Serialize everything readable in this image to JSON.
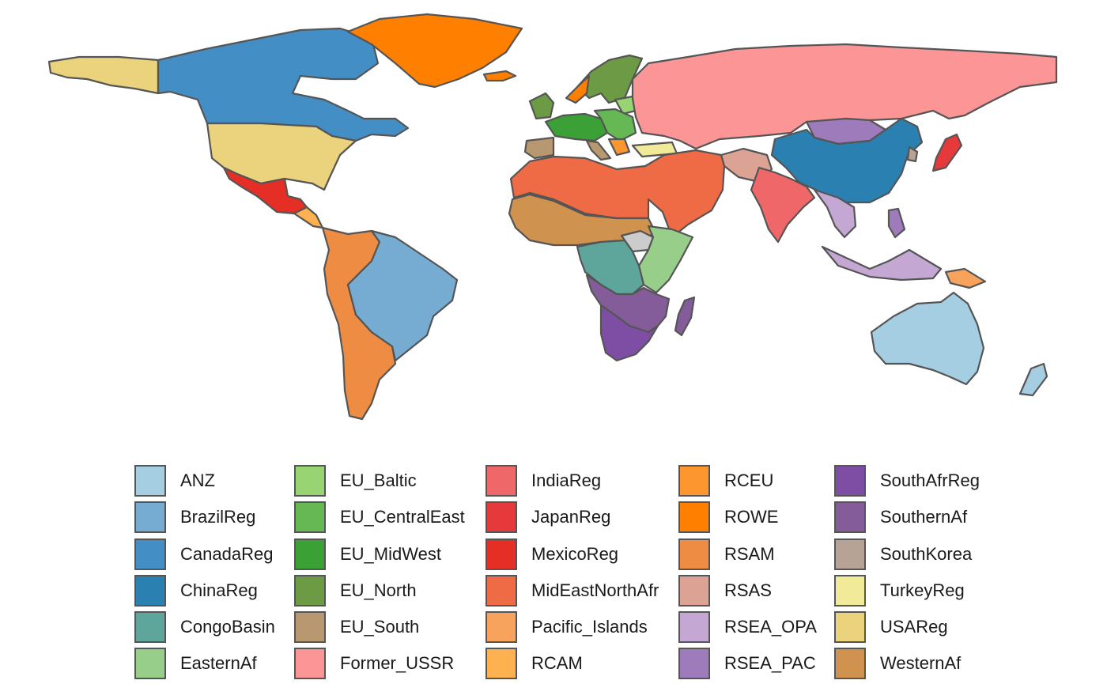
{
  "legend": {
    "items": [
      {
        "label": "ANZ",
        "color": "#a6cee3"
      },
      {
        "label": "BrazilReg",
        "color": "#76acd2"
      },
      {
        "label": "CanadaReg",
        "color": "#438ec4"
      },
      {
        "label": "ChinaReg",
        "color": "#2a80b0"
      },
      {
        "label": "CongoBasin",
        "color": "#5ea69c"
      },
      {
        "label": "EasternAf",
        "color": "#97cf8a"
      },
      {
        "label": "EU_Baltic",
        "color": "#98d472"
      },
      {
        "label": "EU_CentralEast",
        "color": "#65b853"
      },
      {
        "label": "EU_MidWest",
        "color": "#3ba035"
      },
      {
        "label": "EU_North",
        "color": "#6d9a45"
      },
      {
        "label": "EU_South",
        "color": "#b89870"
      },
      {
        "label": "Former_USSR",
        "color": "#fb9596"
      },
      {
        "label": "IndiaReg",
        "color": "#f0676a"
      },
      {
        "label": "JapanReg",
        "color": "#e6393b"
      },
      {
        "label": "MexicoReg",
        "color": "#e42e26"
      },
      {
        "label": "MidEastNorthAfr",
        "color": "#ef6b45"
      },
      {
        "label": "Pacific_Islands",
        "color": "#f8a35d"
      },
      {
        "label": "RCAM",
        "color": "#fdb150"
      },
      {
        "label": "RCEU",
        "color": "#fe962f"
      },
      {
        "label": "ROWE",
        "color": "#ff8000"
      },
      {
        "label": "RSAM",
        "color": "#ee8c43"
      },
      {
        "label": "RSAS",
        "color": "#dca293"
      },
      {
        "label": "RSEA_OPA",
        "color": "#c4a8d3"
      },
      {
        "label": "RSEA_PAC",
        "color": "#9e7cbc"
      },
      {
        "label": "SouthAfrReg",
        "color": "#7d4ea4"
      },
      {
        "label": "SouthernAf",
        "color": "#855c9a"
      },
      {
        "label": "SouthKorea",
        "color": "#b7a396"
      },
      {
        "label": "TurkeyReg",
        "color": "#f1ea98"
      },
      {
        "label": "USAReg",
        "color": "#ead37c"
      },
      {
        "label": "WesternAf",
        "color": "#cf924f"
      }
    ]
  },
  "map": {
    "border_color": "#555555",
    "no_data_color": "#cccccc"
  }
}
